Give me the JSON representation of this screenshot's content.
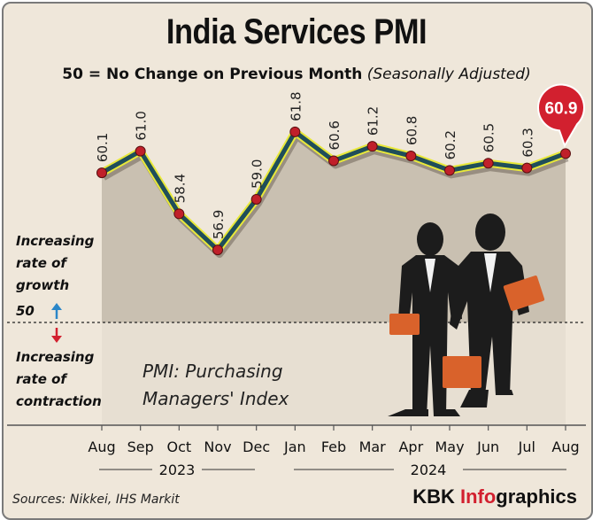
{
  "title": "India Services PMI",
  "subtitle_main": "50 = No Change on Previous Month",
  "subtitle_note": "(Seasonally Adjusted)",
  "side_labels": {
    "growth": [
      "Increasing",
      "rate of",
      "growth"
    ],
    "fifty": "50",
    "contraction": [
      "Increasing",
      "rate of",
      "contraction"
    ]
  },
  "definition": [
    "PMI: Purchasing",
    "Managers' Index"
  ],
  "years": [
    "2023",
    "2024"
  ],
  "source": "Sources: Nikkei, IHS Markit",
  "brand": {
    "prefix": "KBK ",
    "accent": "Info",
    "suffix": "graphics"
  },
  "colors": {
    "line": "#1f4e5a",
    "line_glow": "#e8e83a",
    "point": "#c0202a",
    "highlight": "#d2202f",
    "fill": "#c9c0b1",
    "background": "#efe7da"
  },
  "chart_data": {
    "type": "line",
    "categories": [
      "Aug",
      "Sep",
      "Oct",
      "Nov",
      "Dec",
      "Jan",
      "Feb",
      "Mar",
      "Apr",
      "May",
      "Jun",
      "Jul",
      "Aug"
    ],
    "values": [
      60.1,
      61.0,
      58.4,
      56.9,
      59.0,
      61.8,
      60.6,
      61.2,
      60.8,
      60.2,
      60.5,
      60.3,
      60.9
    ],
    "labels": [
      "60.1",
      "61.0",
      "58.4",
      "56.9",
      "59.0",
      "61.8",
      "60.6",
      "61.2",
      "60.8",
      "60.2",
      "60.5",
      "60.3",
      "60.9"
    ],
    "reference_line": 50,
    "highlight_last": true,
    "title": "India Services PMI"
  }
}
